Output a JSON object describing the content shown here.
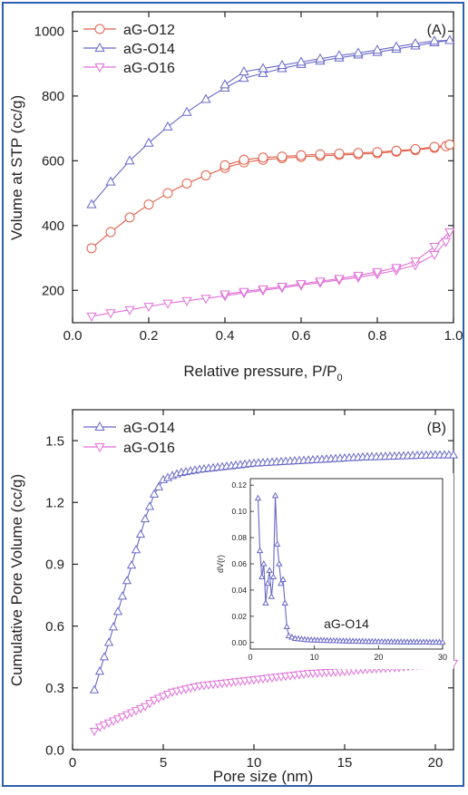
{
  "chart_data": [
    {
      "type": "line",
      "panel_label": "(A)",
      "xlabel": "Relative pressure, P/P",
      "xlabel_sub": "0",
      "ylabel": "Volume at STP (cc/g)",
      "xlim": [
        0.0,
        1.0
      ],
      "ylim": [
        100,
        1060
      ],
      "xticks": [
        0.0,
        0.2,
        0.4,
        0.6,
        0.8,
        1.0
      ],
      "xtick_labels": [
        "0.0",
        "0.2",
        "0.4",
        "0.6",
        "0.8",
        "1.0"
      ],
      "yticks": [
        200,
        400,
        600,
        800,
        1000
      ],
      "ytick_labels": [
        "200",
        "400",
        "600",
        "800",
        "1000"
      ],
      "legend": "top-left",
      "series": [
        {
          "name": "aG-O12",
          "color": "#e0604a",
          "marker": "circle",
          "adsorption": [
            [
              0.05,
              330
            ],
            [
              0.1,
              380
            ],
            [
              0.15,
              425
            ],
            [
              0.2,
              465
            ],
            [
              0.25,
              500
            ],
            [
              0.3,
              530
            ],
            [
              0.35,
              555
            ],
            [
              0.4,
              578
            ],
            [
              0.45,
              595
            ],
            [
              0.5,
              603
            ],
            [
              0.55,
              608
            ],
            [
              0.6,
              612
            ],
            [
              0.65,
              615
            ],
            [
              0.7,
              618
            ],
            [
              0.75,
              620
            ],
            [
              0.8,
              623
            ],
            [
              0.85,
              628
            ],
            [
              0.9,
              633
            ],
            [
              0.95,
              640
            ],
            [
              0.98,
              645
            ],
            [
              0.99,
              650
            ]
          ],
          "desorption": [
            [
              0.99,
              650
            ],
            [
              0.95,
              643
            ],
            [
              0.9,
              636
            ],
            [
              0.85,
              631
            ],
            [
              0.8,
              627
            ],
            [
              0.75,
              624
            ],
            [
              0.7,
              622
            ],
            [
              0.65,
              620
            ],
            [
              0.6,
              617
            ],
            [
              0.55,
              613
            ],
            [
              0.5,
              610
            ],
            [
              0.45,
              603
            ],
            [
              0.4,
              586
            ]
          ]
        },
        {
          "name": "aG-O14",
          "color": "#6868c8",
          "marker": "triangle-up",
          "adsorption": [
            [
              0.05,
              465
            ],
            [
              0.1,
              535
            ],
            [
              0.15,
              600
            ],
            [
              0.2,
              655
            ],
            [
              0.25,
              705
            ],
            [
              0.3,
              750
            ],
            [
              0.35,
              790
            ],
            [
              0.4,
              825
            ],
            [
              0.45,
              855
            ],
            [
              0.5,
              870
            ],
            [
              0.55,
              885
            ],
            [
              0.6,
              898
            ],
            [
              0.65,
              908
            ],
            [
              0.7,
              918
            ],
            [
              0.75,
              927
            ],
            [
              0.8,
              935
            ],
            [
              0.85,
              945
            ],
            [
              0.9,
              955
            ],
            [
              0.95,
              965
            ],
            [
              0.99,
              972
            ]
          ],
          "desorption": [
            [
              0.99,
              972
            ],
            [
              0.95,
              970
            ],
            [
              0.9,
              962
            ],
            [
              0.85,
              952
            ],
            [
              0.8,
              942
            ],
            [
              0.75,
              933
            ],
            [
              0.7,
              925
            ],
            [
              0.65,
              915
            ],
            [
              0.6,
              905
            ],
            [
              0.55,
              895
            ],
            [
              0.5,
              885
            ],
            [
              0.45,
              875
            ],
            [
              0.4,
              835
            ]
          ]
        },
        {
          "name": "aG-O16",
          "color": "#e070d8",
          "marker": "triangle-down",
          "adsorption": [
            [
              0.05,
              120
            ],
            [
              0.1,
              130
            ],
            [
              0.15,
              140
            ],
            [
              0.2,
              150
            ],
            [
              0.25,
              160
            ],
            [
              0.3,
              168
            ],
            [
              0.35,
              175
            ],
            [
              0.4,
              183
            ],
            [
              0.45,
              192
            ],
            [
              0.5,
              200
            ],
            [
              0.55,
              208
            ],
            [
              0.6,
              216
            ],
            [
              0.65,
              224
            ],
            [
              0.7,
              232
            ],
            [
              0.75,
              240
            ],
            [
              0.8,
              250
            ],
            [
              0.85,
              262
            ],
            [
              0.9,
              278
            ],
            [
              0.95,
              310
            ],
            [
              0.98,
              350
            ],
            [
              0.99,
              380
            ]
          ],
          "desorption": [
            [
              0.99,
              380
            ],
            [
              0.95,
              335
            ],
            [
              0.9,
              290
            ],
            [
              0.85,
              270
            ],
            [
              0.8,
              257
            ],
            [
              0.75,
              246
            ],
            [
              0.7,
              236
            ],
            [
              0.65,
              228
            ],
            [
              0.6,
              220
            ],
            [
              0.55,
              212
            ],
            [
              0.5,
              204
            ],
            [
              0.45,
              196
            ],
            [
              0.4,
              188
            ]
          ]
        }
      ]
    },
    {
      "type": "line",
      "panel_label": "(B)",
      "xlabel": "Pore size (nm)",
      "ylabel": "Cumulative Pore Volume (cc/g)",
      "xlim": [
        0,
        21
      ],
      "ylim": [
        0.0,
        1.65
      ],
      "xticks": [
        0,
        5,
        10,
        15,
        20
      ],
      "xtick_labels": [
        "0",
        "5",
        "10",
        "15",
        "20"
      ],
      "yticks": [
        0.0,
        0.3,
        0.6,
        0.9,
        1.2,
        1.5
      ],
      "ytick_labels": [
        "0.0",
        "0.3",
        "0.6",
        "0.9",
        "1.2",
        "1.5"
      ],
      "legend": "top-left",
      "series": [
        {
          "name": "aG-O14",
          "color": "#6868c8",
          "marker": "triangle-up",
          "points": [
            [
              1.2,
              0.29
            ],
            [
              1.5,
              0.38
            ],
            [
              2.0,
              0.52
            ],
            [
              2.5,
              0.67
            ],
            [
              3.0,
              0.82
            ],
            [
              3.5,
              0.97
            ],
            [
              4.0,
              1.12
            ],
            [
              4.5,
              1.24
            ],
            [
              5.0,
              1.31
            ],
            [
              5.5,
              1.33
            ],
            [
              6,
              1.345
            ],
            [
              7,
              1.36
            ],
            [
              8,
              1.37
            ],
            [
              9,
              1.38
            ],
            [
              10,
              1.39
            ],
            [
              11,
              1.395
            ],
            [
              12,
              1.4
            ],
            [
              13,
              1.405
            ],
            [
              14,
              1.41
            ],
            [
              15,
              1.415
            ],
            [
              16,
              1.42
            ],
            [
              17,
              1.422
            ],
            [
              18,
              1.425
            ],
            [
              19,
              1.428
            ],
            [
              20,
              1.43
            ],
            [
              21,
              1.43
            ]
          ]
        },
        {
          "name": "aG-O16",
          "color": "#e070d8",
          "marker": "triangle-down",
          "points": [
            [
              1.2,
              0.09
            ],
            [
              1.5,
              0.11
            ],
            [
              2.0,
              0.13
            ],
            [
              2.5,
              0.15
            ],
            [
              3.0,
              0.17
            ],
            [
              3.5,
              0.19
            ],
            [
              4.0,
              0.21
            ],
            [
              4.5,
              0.24
            ],
            [
              5.0,
              0.26
            ],
            [
              5.5,
              0.28
            ],
            [
              6,
              0.29
            ],
            [
              7,
              0.31
            ],
            [
              8,
              0.32
            ],
            [
              9,
              0.33
            ],
            [
              10,
              0.34
            ],
            [
              11,
              0.35
            ],
            [
              12,
              0.36
            ],
            [
              13,
              0.37
            ],
            [
              14,
              0.375
            ],
            [
              15,
              0.38
            ],
            [
              16,
              0.39
            ],
            [
              17,
              0.395
            ],
            [
              18,
              0.4
            ],
            [
              19,
              0.41
            ],
            [
              20,
              0.415
            ],
            [
              21,
              0.42
            ]
          ]
        }
      ],
      "inset": {
        "type": "line",
        "ylabel": "dV(r)",
        "annotation": "aG-O14",
        "xlim": [
          0,
          30
        ],
        "ylim": [
          -0.005,
          0.125
        ],
        "xticks": [
          0,
          10,
          20,
          30
        ],
        "xtick_labels": [
          "0",
          "10",
          "20",
          "30"
        ],
        "yticks": [
          0.0,
          0.02,
          0.04,
          0.06,
          0.08,
          0.1,
          0.12
        ],
        "ytick_labels": [
          "0.00",
          "0.02",
          "0.04",
          "0.06",
          "0.08",
          "0.10",
          "0.12"
        ],
        "color": "#6868c8",
        "marker": "triangle-up",
        "points": [
          [
            1.2,
            0.11
          ],
          [
            1.5,
            0.07
          ],
          [
            1.8,
            0.05
          ],
          [
            2.1,
            0.06
          ],
          [
            2.4,
            0.03
          ],
          [
            2.7,
            0.045
          ],
          [
            3.0,
            0.055
          ],
          [
            3.3,
            0.035
          ],
          [
            3.6,
            0.05
          ],
          [
            3.9,
            0.112
          ],
          [
            4.2,
            0.075
          ],
          [
            4.5,
            0.06
          ],
          [
            4.8,
            0.045
          ],
          [
            5.1,
            0.048
          ],
          [
            5.4,
            0.03
          ],
          [
            5.7,
            0.012
          ],
          [
            6.0,
            0.005
          ],
          [
            7,
            0.003
          ],
          [
            8,
            0.0025
          ],
          [
            9,
            0.002
          ],
          [
            10,
            0.0018
          ],
          [
            12,
            0.0015
          ],
          [
            14,
            0.0012
          ],
          [
            16,
            0.001
          ],
          [
            18,
            0.0008
          ],
          [
            20,
            0.0006
          ],
          [
            22,
            0.0005
          ],
          [
            24,
            0.0004
          ],
          [
            26,
            0.0003
          ],
          [
            28,
            0.0002
          ],
          [
            30,
            0.0002
          ]
        ]
      }
    }
  ]
}
